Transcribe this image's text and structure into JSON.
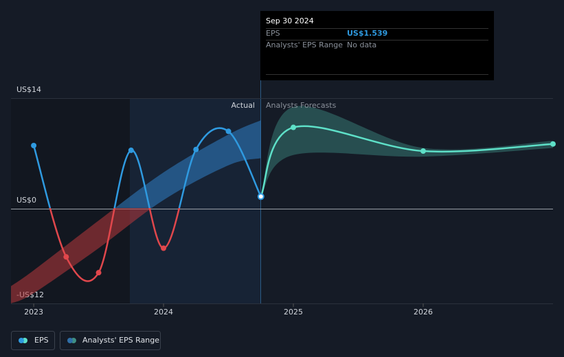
{
  "chart_data": {
    "type": "line",
    "xlim": [
      2022.825,
      2027
    ],
    "xticks": [
      2023,
      2024,
      2025,
      2026
    ],
    "ylim": [
      -12,
      14
    ],
    "yticks": [
      {
        "value": 14,
        "label": "US$14"
      },
      {
        "value": 0,
        "label": "US$0"
      },
      {
        "value": -12,
        "label": "-US$12"
      }
    ],
    "series": [
      {
        "name": "EPS",
        "color": "#2f9ae0",
        "negative_color": "#e0474c",
        "x": [
          2023.0,
          2023.25,
          2023.5,
          2023.75,
          2024.0,
          2024.25,
          2024.5,
          2024.75
        ],
        "values": [
          8.0,
          -6.1,
          -8.1,
          7.4,
          -5.0,
          7.5,
          9.8,
          1.539
        ]
      }
    ],
    "range": {
      "name": "Analysts' EPS Range",
      "color": "#2f7fc4",
      "negative_color": "#b8383d",
      "x": [
        2022.825,
        2023.0,
        2023.5,
        2024.0,
        2024.5,
        2024.75
      ],
      "high": [
        -9.8,
        -7.8,
        -1.5,
        4.6,
        9.4,
        11.2
      ],
      "low": [
        -12,
        -10.7,
        -5.0,
        1.1,
        5.5,
        6.4
      ]
    },
    "forecast": {
      "color": "#5ee0c8",
      "x": [
        2024.75,
        2025.0,
        2026.0,
        2027.0
      ],
      "values": [
        1.539,
        10.3,
        7.3,
        8.2
      ]
    },
    "forecast_range": {
      "color": "#3f8f84",
      "x": [
        2024.75,
        2025.0,
        2026.0,
        2027.0
      ],
      "high": [
        1.539,
        12.9,
        7.7,
        8.6
      ],
      "low": [
        1.539,
        6.8,
        6.6,
        7.7
      ]
    },
    "annotations": {
      "actual": "Actual",
      "forecast": "Analysts Forecasts"
    },
    "tooltip": {
      "date": "Sep 30 2024",
      "rows": [
        {
          "label": "EPS",
          "value": "US$1.539"
        },
        {
          "label": "Analysts' EPS Range",
          "value": "No data"
        }
      ]
    }
  }
}
